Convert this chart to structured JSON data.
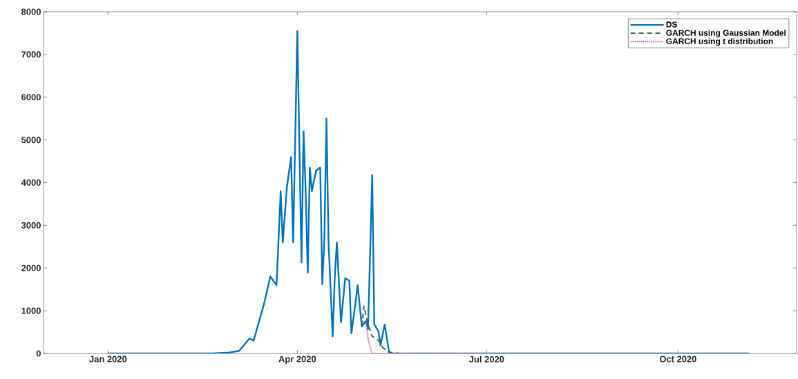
{
  "chart_data": {
    "type": "line",
    "xlim": [
      "2019-12-01",
      "2020-11-27"
    ],
    "xticks": [
      {
        "value": "2020-01-01",
        "label": "Jan 2020"
      },
      {
        "value": "2020-04-01",
        "label": "Apr 2020"
      },
      {
        "value": "2020-07-01",
        "label": "Jul 2020"
      },
      {
        "value": "2020-10-01",
        "label": "Oct 2020"
      }
    ],
    "ylim": [
      0,
      8000
    ],
    "yticks": [
      0,
      1000,
      2000,
      3000,
      4000,
      5000,
      6000,
      7000,
      8000
    ],
    "legend": "top right",
    "series": [
      {
        "name": "DS",
        "color": "#0072bd",
        "line_style": "solid",
        "x": [
          "2020-01-01",
          "2020-02-20",
          "2020-02-28",
          "2020-03-04",
          "2020-03-09",
          "2020-03-11",
          "2020-03-16",
          "2020-03-19",
          "2020-03-22",
          "2020-03-24",
          "2020-03-25",
          "2020-03-27",
          "2020-03-29",
          "2020-03-30",
          "2020-04-01",
          "2020-04-03",
          "2020-04-04",
          "2020-04-05",
          "2020-04-06",
          "2020-04-07",
          "2020-04-08",
          "2020-04-10",
          "2020-04-12",
          "2020-04-13",
          "2020-04-14",
          "2020-04-15",
          "2020-04-16",
          "2020-04-18",
          "2020-04-19",
          "2020-04-20",
          "2020-04-22",
          "2020-04-24",
          "2020-04-26",
          "2020-04-27",
          "2020-04-29",
          "2020-04-30",
          "2020-05-02",
          "2020-05-04",
          "2020-05-05",
          "2020-05-07",
          "2020-05-08",
          "2020-05-10",
          "2020-05-11",
          "2020-05-13",
          "2020-05-15",
          "2020-05-16",
          "2020-11-04"
        ],
        "values": [
          0,
          0,
          20,
          60,
          350,
          300,
          1160,
          1800,
          1600,
          3800,
          2600,
          3900,
          4600,
          2600,
          7550,
          2130,
          5200,
          3800,
          1890,
          4350,
          3800,
          4280,
          4350,
          1620,
          2660,
          5500,
          2600,
          400,
          1800,
          2600,
          730,
          1760,
          1700,
          470,
          1210,
          1600,
          630,
          760,
          570,
          4180,
          680,
          520,
          190,
          680,
          60,
          0,
          0
        ]
      },
      {
        "name": "GARCH using Gaussian Model",
        "color": "#3d6b5c",
        "line_style": "dashed",
        "x": [
          "2020-05-02",
          "2020-05-03",
          "2020-05-05",
          "2020-05-07",
          "2020-05-09",
          "2020-05-11",
          "2020-05-12",
          "2020-05-15",
          "2020-05-20",
          "2020-07-01"
        ],
        "values": [
          630,
          1110,
          680,
          400,
          350,
          250,
          140,
          30,
          0,
          0
        ]
      },
      {
        "name": "GARCH using t distribution",
        "color": "#c83cc8",
        "line_style": "dotted",
        "x": [
          "2020-05-02",
          "2020-05-04",
          "2020-05-05",
          "2020-05-06",
          "2020-05-07",
          "2020-07-01"
        ],
        "values": [
          760,
          730,
          350,
          140,
          0,
          0
        ]
      }
    ]
  }
}
